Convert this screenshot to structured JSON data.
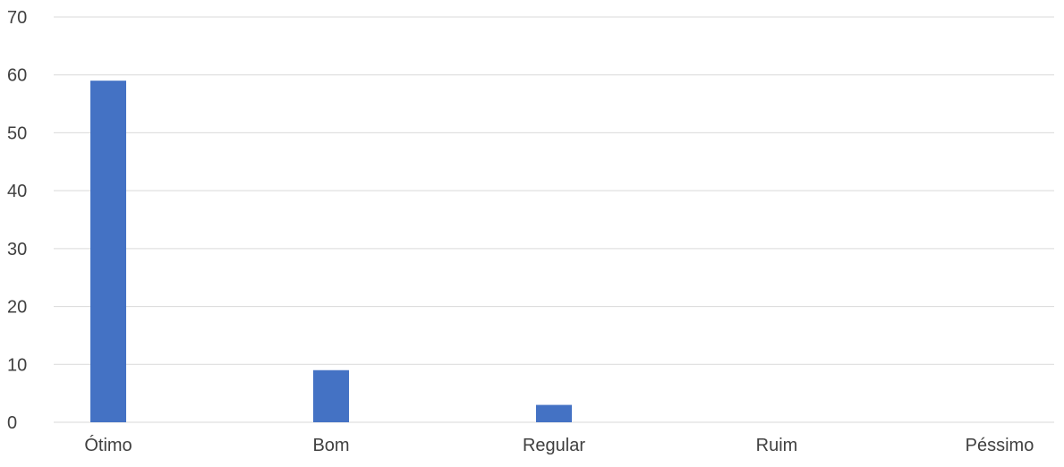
{
  "chart_data": {
    "type": "bar",
    "title": "",
    "xlabel": "",
    "ylabel": "",
    "categories": [
      "Ótimo",
      "Bom",
      "Regular",
      "Ruim",
      "Péssimo"
    ],
    "values": [
      59,
      9,
      3,
      0,
      0
    ],
    "ylim": [
      0,
      70
    ],
    "yticks": [
      0,
      10,
      20,
      30,
      40,
      50,
      60,
      70
    ],
    "grid": true,
    "legend": "none",
    "colors": {
      "bar": "#4472C4",
      "grid": "#D9D9D9",
      "text": "#404040"
    }
  }
}
